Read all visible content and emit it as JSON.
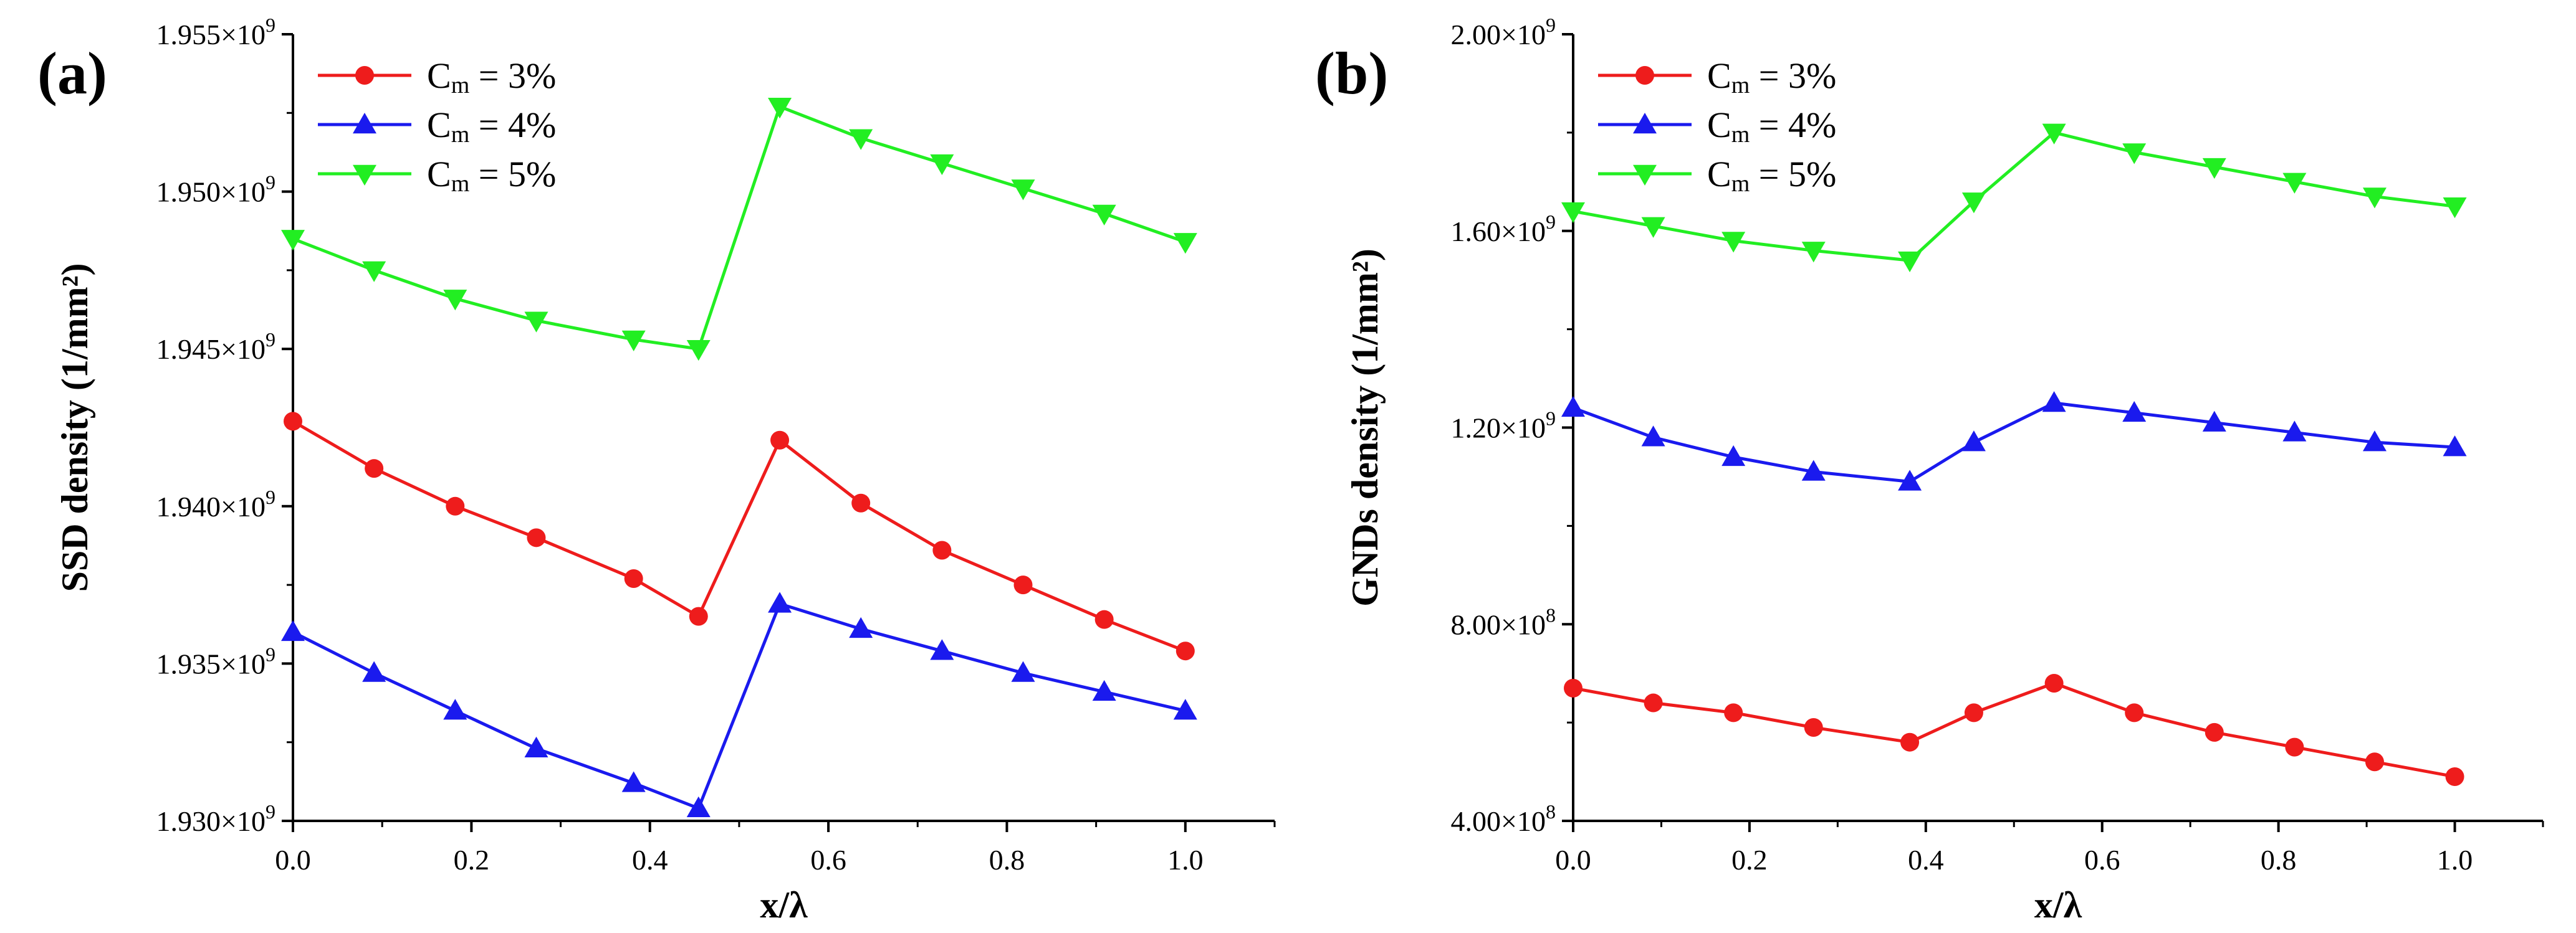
{
  "chart_data": [
    {
      "type": "line",
      "panel_label": "(a)",
      "xlabel": "x/λ",
      "ylabel": "SSD density (1/mm²)",
      "xlim": [
        0,
        1.1
      ],
      "ylim": [
        1930000000.0,
        1955000000.0
      ],
      "xticks": [
        0.0,
        0.2,
        0.4,
        0.6,
        0.8,
        1.0
      ],
      "xtick_labels": [
        "0.0",
        "0.2",
        "0.4",
        "0.6",
        "0.8",
        "1.0"
      ],
      "yticks": [
        1930000000.0,
        1935000000.0,
        1940000000.0,
        1945000000.0,
        1950000000.0,
        1955000000.0
      ],
      "ytick_mantissas": [
        "1.930",
        "1.935",
        "1.940",
        "1.945",
        "1.950",
        "1.955"
      ],
      "ytick_times": "×10",
      "ytick_exponents": [
        "9",
        "9",
        "9",
        "9",
        "9",
        "9"
      ],
      "legend_placement": "top-left",
      "x": [
        0,
        0.0909,
        0.1818,
        0.2727,
        0.3818,
        0.4545,
        0.5455,
        0.6364,
        0.7273,
        0.8182,
        0.9091,
        1.0
      ],
      "series": [
        {
          "name": "Cm = 3%",
          "legend_main": "C",
          "legend_sub": "m",
          "legend_rest": " = 3%",
          "color": "#ee1c1c",
          "marker": "circle",
          "values": [
            1942700000.0,
            1941200000.0,
            1940000000.0,
            1939000000.0,
            1937700000.0,
            1936500000.0,
            1942100000.0,
            1940100000.0,
            1938600000.0,
            1937500000.0,
            1936400000.0,
            1935400000.0
          ]
        },
        {
          "name": "Cm = 4%",
          "legend_main": "C",
          "legend_sub": "m",
          "legend_rest": " = 4%",
          "color": "#1a1aee",
          "marker": "triangle-up",
          "values": [
            1936000000.0,
            1934700000.0,
            1933500000.0,
            1932300000.0,
            1931200000.0,
            1930400000.0,
            1936900000.0,
            1936100000.0,
            1935400000.0,
            1934700000.0,
            1934100000.0,
            1933500000.0
          ]
        },
        {
          "name": "Cm = 5%",
          "legend_main": "C",
          "legend_sub": "m",
          "legend_rest": " = 5%",
          "color": "#22ee22",
          "marker": "triangle-down",
          "values": [
            1948500000.0,
            1947500000.0,
            1946600000.0,
            1945900000.0,
            1945300000.0,
            1945000000.0,
            1952700000.0,
            1951700000.0,
            1950900000.0,
            1950100000.0,
            1949300000.0,
            1948400000.0
          ]
        }
      ]
    },
    {
      "type": "line",
      "panel_label": "(b)",
      "xlabel": "x/λ",
      "ylabel": "GNDs density (1/mm²)",
      "xlim": [
        0,
        1.1
      ],
      "ylim": [
        400000000.0,
        2000000000.0
      ],
      "xticks": [
        0.0,
        0.2,
        0.4,
        0.6,
        0.8,
        1.0
      ],
      "xtick_labels": [
        "0.0",
        "0.2",
        "0.4",
        "0.6",
        "0.8",
        "1.0"
      ],
      "yticks": [
        400000000.0,
        800000000.0,
        1200000000.0,
        1600000000.0,
        2000000000.0
      ],
      "ytick_mantissas": [
        "4.00",
        "8.00",
        "1.20",
        "1.60",
        "2.00"
      ],
      "ytick_times": "×10",
      "ytick_exponents": [
        "8",
        "8",
        "9",
        "9",
        "9"
      ],
      "legend_placement": "top-left",
      "x": [
        0,
        0.0909,
        0.1818,
        0.2727,
        0.3818,
        0.4545,
        0.5455,
        0.6364,
        0.7273,
        0.8182,
        0.9091,
        1.0
      ],
      "series": [
        {
          "name": "Cm = 3%",
          "legend_main": "C",
          "legend_sub": "m",
          "legend_rest": " = 3%",
          "color": "#ee1c1c",
          "marker": "circle",
          "values": [
            670000000.0,
            640000000.0,
            620000000.0,
            590000000.0,
            560000000.0,
            620000000.0,
            680000000.0,
            620000000.0,
            580000000.0,
            550000000.0,
            520000000.0,
            490000000.0
          ]
        },
        {
          "name": "Cm = 4%",
          "legend_main": "C",
          "legend_sub": "m",
          "legend_rest": " = 4%",
          "color": "#1a1aee",
          "marker": "triangle-up",
          "values": [
            1240000000.0,
            1180000000.0,
            1140000000.0,
            1110000000.0,
            1090000000.0,
            1170000000.0,
            1250000000.0,
            1230000000.0,
            1210000000.0,
            1190000000.0,
            1170000000.0,
            1160000000.0
          ]
        },
        {
          "name": "Cm = 5%",
          "legend_main": "C",
          "legend_sub": "m",
          "legend_rest": " = 5%",
          "color": "#22ee22",
          "marker": "triangle-down",
          "values": [
            1640000000.0,
            1610000000.0,
            1580000000.0,
            1560000000.0,
            1540000000.0,
            1660000000.0,
            1800000000.0,
            1760000000.0,
            1730000000.0,
            1700000000.0,
            1670000000.0,
            1650000000.0
          ]
        }
      ]
    }
  ]
}
